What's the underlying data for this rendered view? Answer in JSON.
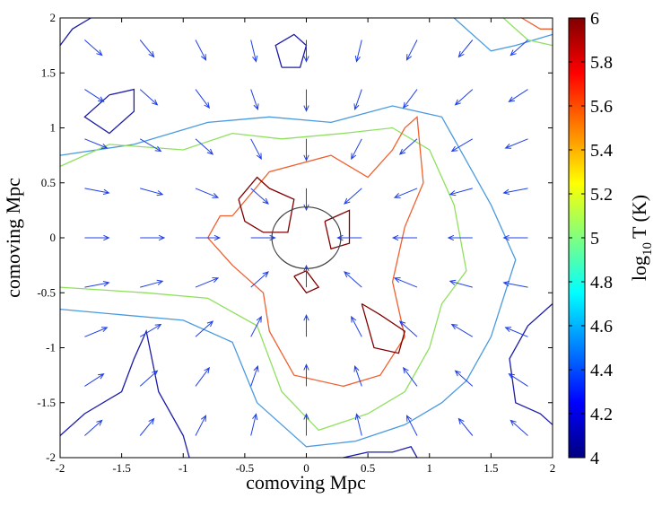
{
  "chart_data": {
    "type": "contour",
    "xlabel": "comoving Mpc",
    "ylabel": "comoving Mpc",
    "xlim": [
      -2,
      2
    ],
    "ylim": [
      -2,
      2
    ],
    "xticks": [
      -2,
      -1.5,
      -1,
      -0.5,
      0,
      0.5,
      1,
      1.5,
      2
    ],
    "yticks": [
      -2,
      -1.5,
      -1,
      -0.5,
      0,
      0.5,
      1,
      1.5,
      2
    ],
    "colorbar": {
      "clim": [
        4,
        6
      ],
      "ticks": [
        4,
        4.2,
        4.4,
        4.6,
        4.8,
        5,
        5.2,
        5.4,
        5.6,
        5.8,
        6
      ],
      "label": {
        "base": "log",
        "sub": "10",
        "rest": "T (K)"
      },
      "colormap": "jet"
    },
    "quiver": {
      "color": "#2040e8",
      "x": [
        -1.8,
        -1.35,
        -0.9,
        -0.45,
        0,
        0.45,
        0.9,
        1.35,
        1.8
      ],
      "y": [
        -1.8,
        -1.35,
        -0.9,
        -0.45,
        0,
        0.45,
        0.9,
        1.35,
        1.8
      ],
      "u": [
        [
          0.1,
          0.08,
          0.06,
          0.03,
          0,
          -0.03,
          -0.06,
          -0.08,
          -0.1
        ],
        [
          0.11,
          0.1,
          0.08,
          0.04,
          0,
          -0.04,
          -0.08,
          -0.1,
          -0.11
        ],
        [
          0.13,
          0.12,
          0.1,
          0.06,
          0,
          -0.06,
          -0.1,
          -0.12,
          -0.13
        ],
        [
          0.14,
          0.13,
          0.13,
          0.1,
          0,
          -0.1,
          -0.13,
          -0.13,
          -0.14
        ],
        [
          0.14,
          0.14,
          0.14,
          0.14,
          0,
          -0.14,
          -0.14,
          -0.14,
          -0.14
        ],
        [
          0.14,
          0.13,
          0.13,
          0.1,
          0,
          -0.1,
          -0.13,
          -0.13,
          -0.14
        ],
        [
          0.13,
          0.12,
          0.1,
          0.06,
          0,
          -0.06,
          -0.1,
          -0.12,
          -0.13
        ],
        [
          0.11,
          0.1,
          0.08,
          0.04,
          0,
          -0.04,
          -0.08,
          -0.1,
          -0.11
        ],
        [
          0.1,
          0.08,
          0.06,
          0.03,
          0,
          -0.03,
          -0.06,
          -0.08,
          -0.1
        ]
      ],
      "v": [
        [
          0.1,
          0.11,
          0.13,
          0.14,
          0.14,
          0.14,
          0.13,
          0.11,
          0.1
        ],
        [
          0.08,
          0.1,
          0.12,
          0.13,
          0.14,
          0.13,
          0.12,
          0.1,
          0.08
        ],
        [
          0.06,
          0.08,
          0.1,
          0.13,
          0.14,
          0.13,
          0.1,
          0.08,
          0.06
        ],
        [
          0.03,
          0.04,
          0.06,
          0.1,
          0.14,
          0.1,
          0.06,
          0.04,
          0.03
        ],
        [
          0,
          0,
          0,
          0,
          0,
          0,
          0,
          0,
          0
        ],
        [
          -0.03,
          -0.04,
          -0.06,
          -0.1,
          -0.14,
          -0.1,
          -0.06,
          -0.04,
          -0.03
        ],
        [
          -0.06,
          -0.08,
          -0.1,
          -0.13,
          -0.14,
          -0.13,
          -0.1,
          -0.08,
          -0.06
        ],
        [
          -0.08,
          -0.1,
          -0.12,
          -0.13,
          -0.14,
          -0.13,
          -0.12,
          -0.1,
          -0.08
        ],
        [
          -0.1,
          -0.11,
          -0.13,
          -0.14,
          -0.14,
          -0.14,
          -0.13,
          -0.11,
          -0.1
        ]
      ]
    },
    "contours": [
      {
        "level": 4.1,
        "color": "#1c1ca8",
        "lines": [
          {
            "x": [
              -2,
              -1.9,
              -1.75
            ],
            "y": [
              1.75,
              1.9,
              2
            ]
          },
          {
            "x": [
              -0.2,
              -0.05,
              0.0,
              -0.1,
              -0.25,
              -0.2
            ],
            "y": [
              1.55,
              1.55,
              1.75,
              1.85,
              1.75,
              1.55
            ]
          },
          {
            "x": [
              -1.6,
              -1.4,
              -1.4,
              -1.6,
              -1.8,
              -1.6
            ],
            "y": [
              1.3,
              1.35,
              1.15,
              0.95,
              1.1,
              1.3
            ]
          },
          {
            "x": [
              -2,
              -1.8,
              -1.5,
              -1.4,
              -1.3,
              -1.2,
              -1.0,
              -0.95
            ],
            "y": [
              -1.8,
              -1.6,
              -1.4,
              -1.1,
              -0.85,
              -1.4,
              -1.8,
              -2
            ]
          },
          {
            "x": [
              0.3,
              0.5,
              0.7,
              0.85,
              0.9
            ],
            "y": [
              -2,
              -1.95,
              -1.95,
              -1.9,
              -2
            ]
          },
          {
            "x": [
              2,
              1.8,
              1.65,
              1.7,
              1.9,
              2
            ],
            "y": [
              -0.6,
              -0.8,
              -1.1,
              -1.5,
              -1.6,
              -1.7
            ]
          }
        ]
      },
      {
        "level": 4.6,
        "color": "#4a9ae0",
        "lines": [
          {
            "x": [
              -2,
              -1.4,
              -0.8,
              -0.3,
              0.2,
              0.7,
              1.1,
              1.5,
              1.7,
              1.5,
              1.3,
              1.1,
              0.8,
              0.4,
              0.0,
              -0.4,
              -0.6,
              -1.0,
              -1.5,
              -2
            ],
            "y": [
              0.75,
              0.85,
              1.05,
              1.1,
              1.05,
              1.2,
              1.1,
              0.3,
              -0.2,
              -0.9,
              -1.3,
              -1.5,
              -1.7,
              -1.85,
              -1.9,
              -1.5,
              -0.95,
              -0.75,
              -0.7,
              -0.65
            ]
          },
          {
            "x": [
              1.2,
              1.5,
              1.7,
              2
            ],
            "y": [
              2,
              1.7,
              1.75,
              1.85
            ]
          }
        ]
      },
      {
        "level": 5.0,
        "color": "#90e060",
        "lines": [
          {
            "x": [
              -2,
              -1.6,
              -1.0,
              -0.6,
              -0.2,
              0.3,
              0.7,
              1.0,
              1.2,
              1.3,
              1.1,
              1.0,
              0.8,
              0.5,
              0.1,
              -0.2,
              -0.4,
              -0.8,
              -1.3,
              -2
            ],
            "y": [
              0.65,
              0.85,
              0.8,
              0.95,
              0.9,
              0.95,
              1.0,
              0.8,
              0.3,
              -0.3,
              -0.6,
              -1.0,
              -1.4,
              -1.6,
              -1.75,
              -1.4,
              -0.8,
              -0.55,
              -0.5,
              -0.45
            ]
          },
          {
            "x": [
              1.6,
              1.8,
              2
            ],
            "y": [
              2,
              1.8,
              1.75
            ]
          }
        ]
      },
      {
        "level": 5.5,
        "color": "#f06030",
        "lines": [
          {
            "x": [
              -0.6,
              -0.3,
              0.2,
              0.5,
              0.7,
              0.8,
              0.9,
              0.95,
              0.8,
              0.7,
              0.8,
              0.6,
              0.3,
              -0.1,
              -0.3,
              -0.35,
              -0.6,
              -0.8,
              -0.7,
              -0.6
            ],
            "y": [
              0.2,
              0.6,
              0.75,
              0.55,
              0.8,
              1.0,
              1.1,
              0.5,
              0.1,
              -0.4,
              -0.9,
              -1.25,
              -1.35,
              -1.25,
              -0.85,
              -0.5,
              -0.25,
              0.0,
              0.2,
              0.2
            ]
          },
          {
            "x": [
              1.75,
              1.9,
              2
            ],
            "y": [
              2,
              1.9,
              1.9
            ]
          }
        ]
      },
      {
        "level": 5.9,
        "color": "#800000",
        "lines": [
          {
            "x": [
              -0.55,
              -0.4,
              -0.3,
              -0.1,
              -0.15,
              -0.35,
              -0.5,
              -0.55
            ],
            "y": [
              0.35,
              0.55,
              0.45,
              0.35,
              0.05,
              0.05,
              0.15,
              0.35
            ]
          },
          {
            "x": [
              0.45,
              0.6,
              0.8,
              0.75,
              0.55,
              0.45
            ],
            "y": [
              -0.6,
              -0.7,
              -0.85,
              -1.05,
              -1.0,
              -0.6
            ]
          },
          {
            "x": [
              0.15,
              0.35,
              0.35,
              0.2,
              0.15
            ],
            "y": [
              0.15,
              0.25,
              -0.05,
              -0.1,
              0.15
            ]
          },
          {
            "x": [
              -0.1,
              0.0,
              0.1,
              0.0,
              -0.1
            ],
            "y": [
              -0.35,
              -0.3,
              -0.45,
              -0.5,
              -0.35
            ]
          }
        ]
      }
    ],
    "circle": {
      "x": 0,
      "y": 0,
      "r": 0.28,
      "color": "#404040"
    }
  }
}
